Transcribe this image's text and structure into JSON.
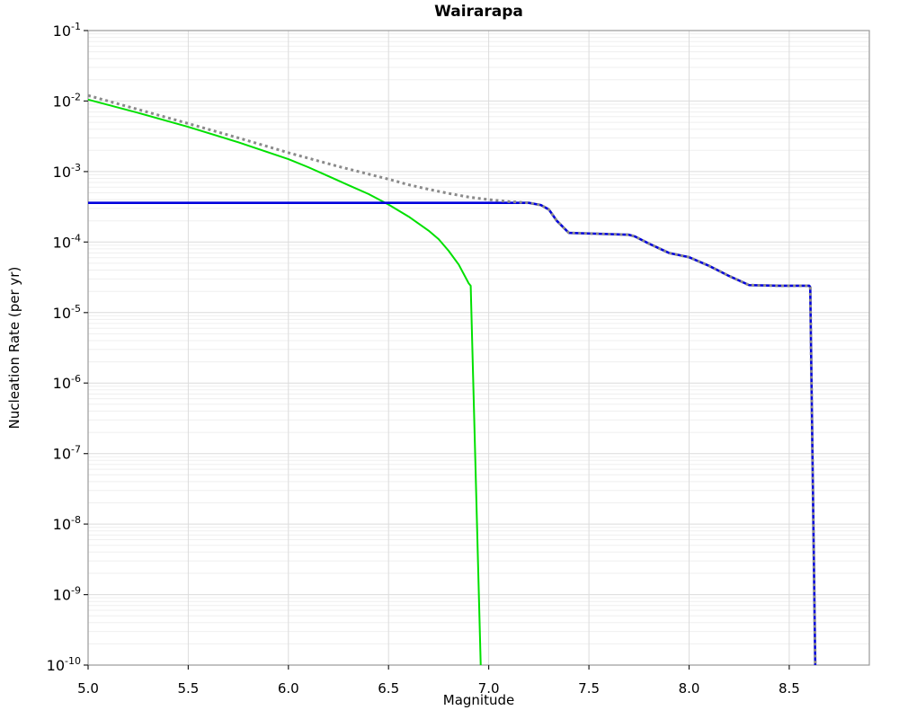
{
  "chart_data": {
    "type": "line",
    "title": "Wairarapa",
    "xlabel": "Magnitude",
    "ylabel": "Nucleation Rate (per yr)",
    "xlim": [
      5.0,
      8.9
    ],
    "ylim_log10": [
      -10,
      -1
    ],
    "x_ticks": [
      5.0,
      5.5,
      6.0,
      6.5,
      7.0,
      7.5,
      8.0,
      8.5
    ],
    "x_tick_labels": [
      "5.0",
      "5.5",
      "6.0",
      "6.5",
      "7.0",
      "7.5",
      "8.0",
      "8.5"
    ],
    "y_tick_base": "10",
    "y_tick_exponents": [
      "-1",
      "-2",
      "-3",
      "-4",
      "-5",
      "-6",
      "-7",
      "-8",
      "-9",
      "-10"
    ],
    "grid": {
      "major_color": "#dcdcdc",
      "minor_color": "#efefef",
      "border_color": "#9a9a9a",
      "tick_color": "#222222",
      "background": "#ffffff",
      "legend": "none"
    },
    "series": [
      {
        "name": "green-curve",
        "color": "#00e000",
        "style": "solid",
        "width": 2,
        "points": [
          [
            5.0,
            0.0105
          ],
          [
            5.25,
            0.0068
          ],
          [
            5.5,
            0.0043
          ],
          [
            5.75,
            0.0026
          ],
          [
            6.0,
            0.0015
          ],
          [
            6.1,
            0.00115
          ],
          [
            6.2,
            0.00086
          ],
          [
            6.3,
            0.00064
          ],
          [
            6.4,
            0.00048
          ],
          [
            6.5,
            0.00034
          ],
          [
            6.6,
            0.00023
          ],
          [
            6.7,
            0.000145
          ],
          [
            6.75,
            0.00011
          ],
          [
            6.8,
            7.5e-05
          ],
          [
            6.85,
            4.8e-05
          ],
          [
            6.9,
            2.6e-05
          ],
          [
            6.91,
            2.4e-05
          ],
          [
            6.96,
            1e-10
          ]
        ]
      },
      {
        "name": "blue-curve",
        "color": "#0000dd",
        "style": "solid",
        "width": 2.6,
        "points": [
          [
            5.0,
            0.00036
          ],
          [
            7.2,
            0.00036
          ],
          [
            7.26,
            0.000335
          ],
          [
            7.3,
            0.00029
          ],
          [
            7.34,
            0.0002
          ],
          [
            7.4,
            0.000135
          ],
          [
            7.55,
            0.000131
          ],
          [
            7.7,
            0.000127
          ],
          [
            7.73,
            0.00012
          ],
          [
            7.8,
            9.5e-05
          ],
          [
            7.9,
            7e-05
          ],
          [
            8.0,
            6.1e-05
          ],
          [
            8.1,
            4.6e-05
          ],
          [
            8.2,
            3.3e-05
          ],
          [
            8.3,
            2.45e-05
          ],
          [
            8.45,
            2.4e-05
          ],
          [
            8.6,
            2.4e-05
          ],
          [
            8.605,
            2.3e-05
          ],
          [
            8.63,
            1e-10
          ]
        ]
      },
      {
        "name": "gray-dotted-curve",
        "color": "#8a8a8a",
        "style": "dotted",
        "width": 3,
        "points": [
          [
            5.0,
            0.012
          ],
          [
            5.25,
            0.0076
          ],
          [
            5.5,
            0.0048
          ],
          [
            5.75,
            0.003
          ],
          [
            6.0,
            0.00185
          ],
          [
            6.25,
            0.00118
          ],
          [
            6.5,
            0.00078
          ],
          [
            6.6,
            0.00065
          ],
          [
            6.7,
            0.00056
          ],
          [
            6.8,
            0.00049
          ],
          [
            6.9,
            0.000435
          ],
          [
            7.0,
            0.0004
          ],
          [
            7.1,
            0.000375
          ],
          [
            7.2,
            0.00036
          ],
          [
            7.26,
            0.000335
          ],
          [
            7.3,
            0.00029
          ],
          [
            7.34,
            0.0002
          ],
          [
            7.4,
            0.000135
          ],
          [
            7.55,
            0.000131
          ],
          [
            7.7,
            0.000127
          ],
          [
            7.73,
            0.00012
          ],
          [
            7.8,
            9.5e-05
          ],
          [
            7.9,
            7e-05
          ],
          [
            8.0,
            6.1e-05
          ],
          [
            8.1,
            4.6e-05
          ],
          [
            8.2,
            3.3e-05
          ],
          [
            8.3,
            2.45e-05
          ],
          [
            8.45,
            2.4e-05
          ],
          [
            8.6,
            2.4e-05
          ],
          [
            8.605,
            2.3e-05
          ],
          [
            8.63,
            1e-10
          ]
        ]
      }
    ]
  }
}
